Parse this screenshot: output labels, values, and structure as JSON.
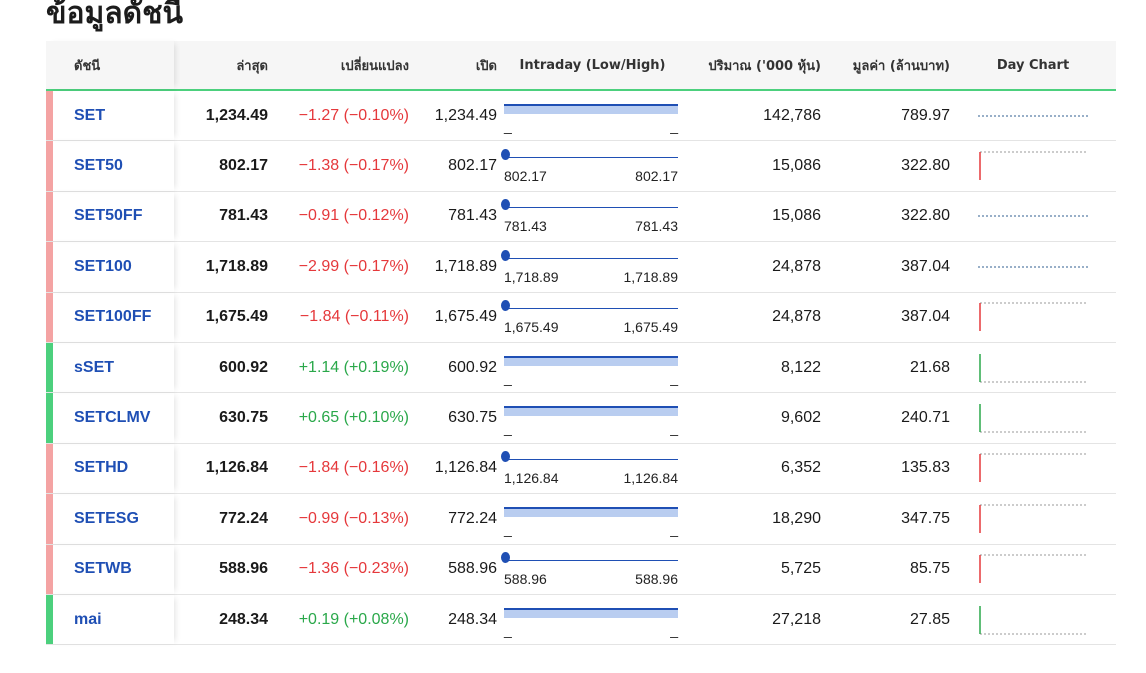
{
  "title": "ข้อมูลดัชนี",
  "headers": {
    "index": "ดัชนี",
    "last": "ล่าสุด",
    "change": "เปลี่ยนแปลง",
    "open": "เปิด",
    "intraday": "Intraday (Low/High)",
    "volume": "ปริมาณ ('000 หุ้น)",
    "value": "มูลค่า (ล้านบาท)",
    "day_chart": "Day Chart"
  },
  "colors": {
    "up": "#2aa84a",
    "down": "#e5383b",
    "up_bar": "#4cd07d",
    "down_bar": "#f4a3a3",
    "link": "#1f4fb4"
  },
  "rows": [
    {
      "symbol": "SET",
      "last": "1,234.49",
      "change": "−1.27 (−0.10%)",
      "dir": "down",
      "open": "1,234.49",
      "intra_type": "bar",
      "low": "_",
      "high": "_",
      "volume": "142,786",
      "value": "789.97",
      "chart": "flat"
    },
    {
      "symbol": "SET50",
      "last": "802.17",
      "change": "−1.38 (−0.17%)",
      "dir": "down",
      "open": "802.17",
      "intra_type": "dot",
      "low": "802.17",
      "high": "802.17",
      "volume": "15,086",
      "value": "322.80",
      "chart": "drop"
    },
    {
      "symbol": "SET50FF",
      "last": "781.43",
      "change": "−0.91 (−0.12%)",
      "dir": "down",
      "open": "781.43",
      "intra_type": "dot",
      "low": "781.43",
      "high": "781.43",
      "volume": "15,086",
      "value": "322.80",
      "chart": "flat"
    },
    {
      "symbol": "SET100",
      "last": "1,718.89",
      "change": "−2.99 (−0.17%)",
      "dir": "down",
      "open": "1,718.89",
      "intra_type": "dot",
      "low": "1,718.89",
      "high": "1,718.89",
      "volume": "24,878",
      "value": "387.04",
      "chart": "flat"
    },
    {
      "symbol": "SET100FF",
      "last": "1,675.49",
      "change": "−1.84 (−0.11%)",
      "dir": "down",
      "open": "1,675.49",
      "intra_type": "dot",
      "low": "1,675.49",
      "high": "1,675.49",
      "volume": "24,878",
      "value": "387.04",
      "chart": "drop"
    },
    {
      "symbol": "sSET",
      "last": "600.92",
      "change": "+1.14 (+0.19%)",
      "dir": "up",
      "open": "600.92",
      "intra_type": "bar",
      "low": "_",
      "high": "_",
      "volume": "8,122",
      "value": "21.68",
      "chart": "rise"
    },
    {
      "symbol": "SETCLMV",
      "last": "630.75",
      "change": "+0.65 (+0.10%)",
      "dir": "up",
      "open": "630.75",
      "intra_type": "bar",
      "low": "_",
      "high": "_",
      "volume": "9,602",
      "value": "240.71",
      "chart": "rise"
    },
    {
      "symbol": "SETHD",
      "last": "1,126.84",
      "change": "−1.84 (−0.16%)",
      "dir": "down",
      "open": "1,126.84",
      "intra_type": "dot",
      "low": "1,126.84",
      "high": "1,126.84",
      "volume": "6,352",
      "value": "135.83",
      "chart": "drop"
    },
    {
      "symbol": "SETESG",
      "last": "772.24",
      "change": "−0.99 (−0.13%)",
      "dir": "down",
      "open": "772.24",
      "intra_type": "bar",
      "low": "_",
      "high": "_",
      "volume": "18,290",
      "value": "347.75",
      "chart": "drop"
    },
    {
      "symbol": "SETWB",
      "last": "588.96",
      "change": "−1.36 (−0.23%)",
      "dir": "down",
      "open": "588.96",
      "intra_type": "dot",
      "low": "588.96",
      "high": "588.96",
      "volume": "5,725",
      "value": "85.75",
      "chart": "drop"
    },
    {
      "symbol": "mai",
      "last": "248.34",
      "change": "+0.19 (+0.08%)",
      "dir": "up",
      "open": "248.34",
      "intra_type": "bar",
      "low": "_",
      "high": "_",
      "volume": "27,218",
      "value": "27.85",
      "chart": "rise"
    }
  ]
}
